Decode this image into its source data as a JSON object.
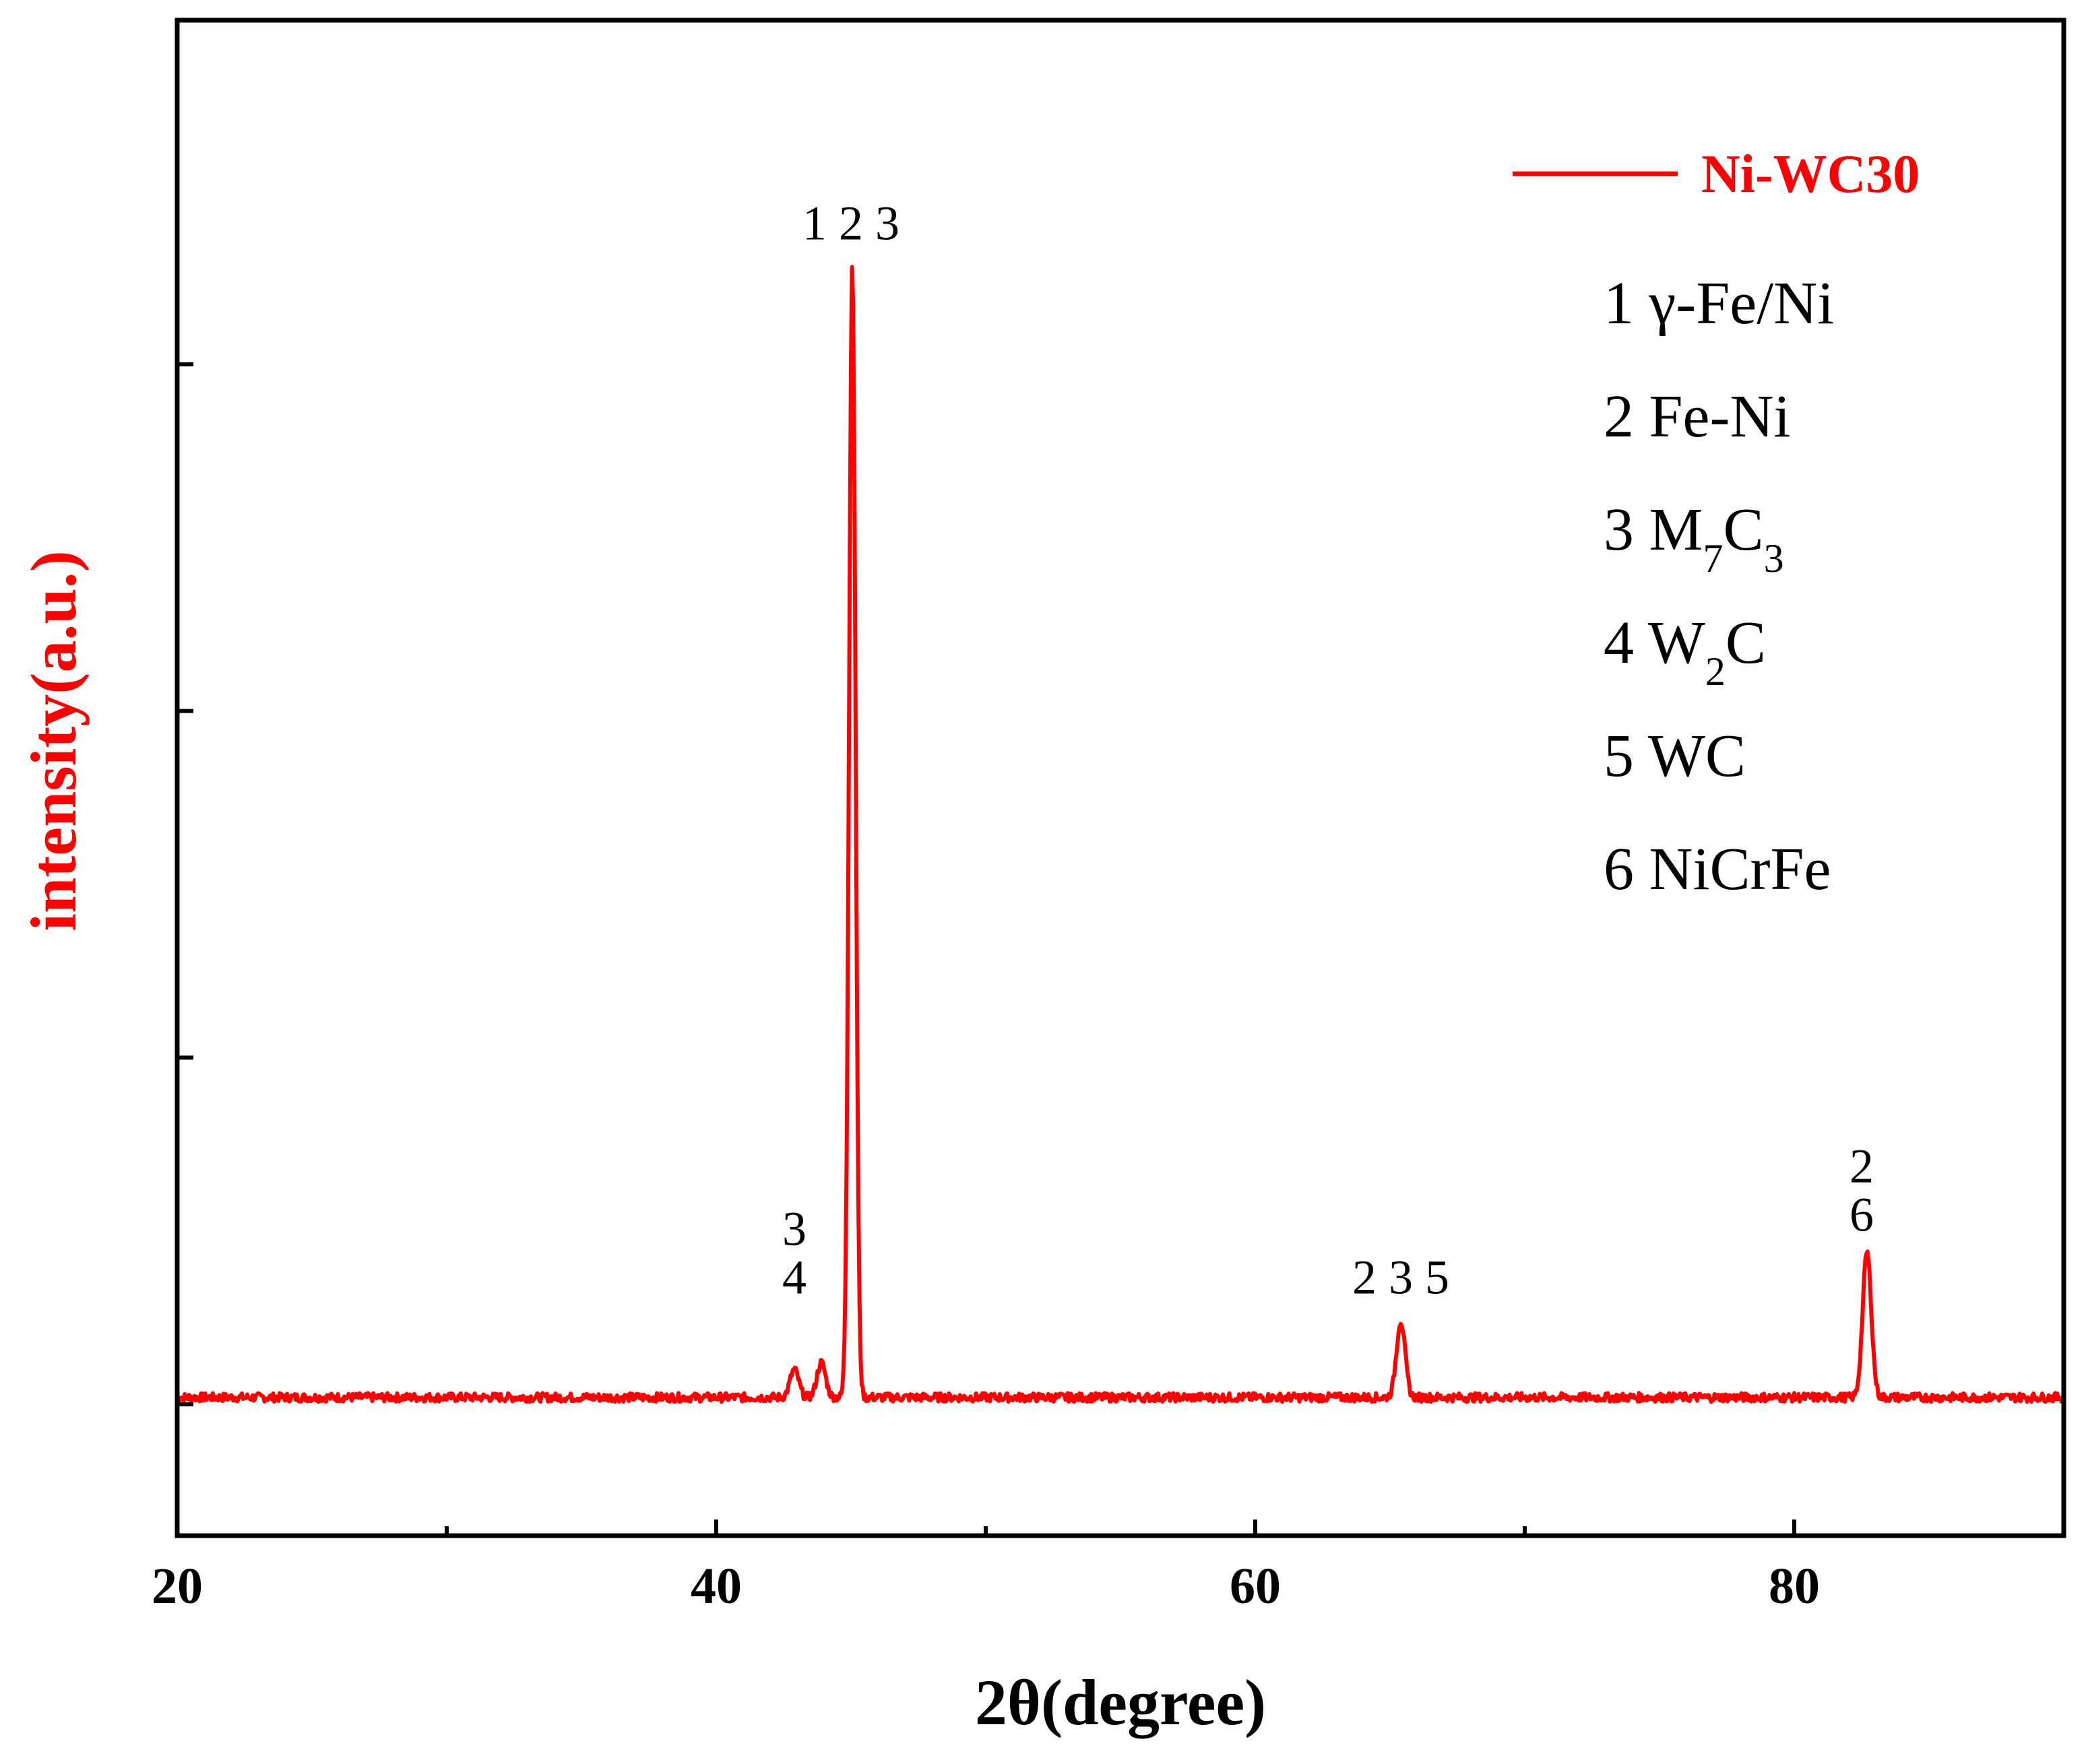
{
  "chart_data": {
    "type": "line",
    "title": "",
    "xlabel": "2θ(degree)",
    "ylabel": "intensity(a.u.)",
    "xlim": [
      20,
      90
    ],
    "ylim": [
      -0.2,
      3.8
    ],
    "x_ticks": [
      20,
      40,
      60,
      80
    ],
    "x_tick_labels": [
      "20",
      "40",
      "60",
      "80"
    ],
    "x_minor_ticks": [
      30,
      50,
      70
    ],
    "y_ticks": [
      0,
      1,
      2,
      3
    ],
    "grid": false,
    "legend_position": "top-right",
    "series": [
      {
        "name": "Ni-WC30",
        "color": "#ff0000",
        "baseline": 0.02,
        "peaks": [
          {
            "x": 42.9,
            "height": 0.08
          },
          {
            "x": 43.9,
            "height": 0.1
          },
          {
            "x": 45.05,
            "height": 3.27
          },
          {
            "x": 65.4,
            "height": 0.22
          },
          {
            "x": 82.7,
            "height": 0.42
          }
        ]
      }
    ],
    "peak_annotations": [
      {
        "x": 45.0,
        "lines": [
          "1 2 3"
        ],
        "y": 3.36
      },
      {
        "x": 42.9,
        "lines": [
          "3",
          "4"
        ],
        "y": 0.32
      },
      {
        "x": 65.4,
        "lines": [
          "2 3 5"
        ],
        "y": 0.32
      },
      {
        "x": 82.5,
        "lines": [
          "2",
          "6"
        ],
        "y": 0.5
      }
    ],
    "phase_legend": [
      {
        "number": "1",
        "phase": "γ-Fe/Ni"
      },
      {
        "number": "2",
        "phase": "Fe-Ni"
      },
      {
        "number": "3",
        "phase": "M",
        "sub1": "7",
        "mid": "C",
        "sub2": "3"
      },
      {
        "number": "4",
        "phase": "W",
        "sub1": "2",
        "mid": "C"
      },
      {
        "number": "5",
        "phase": "WC"
      },
      {
        "number": "6",
        "phase": "NiCrFe"
      }
    ],
    "title_color": "#ff0000"
  }
}
